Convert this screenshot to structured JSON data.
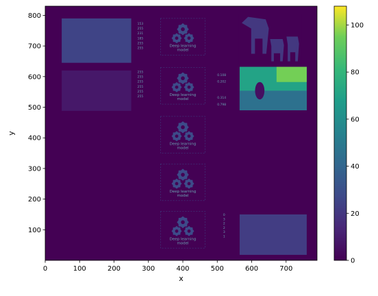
{
  "chart_data": {
    "type": "heatmap",
    "title": "",
    "xlabel": "x",
    "ylabel": "y",
    "xlim": [
      0,
      790
    ],
    "ylim": [
      0,
      830
    ],
    "xticks": [
      0,
      100,
      200,
      300,
      400,
      500,
      600,
      700
    ],
    "yticks": [
      100,
      200,
      300,
      400,
      500,
      600,
      700,
      800
    ],
    "colorbar": {
      "colormap": "viridis",
      "range": [
        0,
        108
      ],
      "ticks": [
        0,
        20,
        40,
        60,
        80,
        100
      ]
    },
    "grid": false,
    "background_value": 0,
    "panels": [
      {
        "name": "photo-cows-top",
        "x": [
          48,
          250
        ],
        "y": [
          645,
          790
        ],
        "level": 25
      },
      {
        "name": "photo-dark-mid",
        "x": [
          48,
          250
        ],
        "y": [
          488,
          620
        ],
        "level": 8
      },
      {
        "name": "cow-silhouette",
        "x": [
          562,
          745
        ],
        "y": [
          640,
          805
        ],
        "level": 20
      },
      {
        "name": "depth-map",
        "x": [
          565,
          760
        ],
        "y": [
          490,
          632
        ],
        "level": 70
      },
      {
        "name": "photo-bottom-right",
        "x": [
          565,
          760
        ],
        "y": [
          18,
          150
        ],
        "level": 22
      }
    ],
    "model_boxes": [
      {
        "label": "Deep learning\nmodel",
        "y_center": 730
      },
      {
        "label": "Deep learning\nmodel",
        "y_center": 570
      },
      {
        "label": "Deep learning\nmodel",
        "y_center": 410
      },
      {
        "label": "Deep learning\nmodel",
        "y_center": 255
      },
      {
        "label": "Deep learning\nmodel",
        "y_center": 100
      }
    ],
    "annotations": {
      "tokens_top": [
        "153",
        "255",
        "231",
        "185",
        "255",
        "255"
      ],
      "tokens_mid": [
        "255",
        "255",
        "255",
        "255",
        "255",
        "255"
      ],
      "outputs_mid": [
        "0.108",
        "0.202",
        "0.314",
        "0.798"
      ],
      "outputs_bottom": [
        "0",
        "3",
        "2",
        "2",
        "3",
        "1"
      ]
    }
  }
}
